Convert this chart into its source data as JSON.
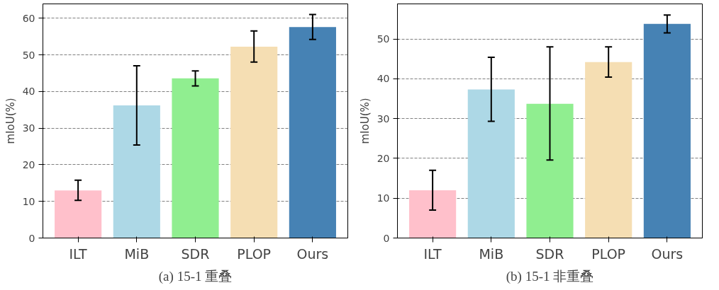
{
  "chart_data": [
    {
      "type": "bar",
      "title": "(a) 15-1 重叠",
      "ylabel": "mIoU(%)",
      "categories": [
        "ILT",
        "MiB",
        "SDR",
        "PLOP",
        "Ours"
      ],
      "values": [
        13,
        36.2,
        43.6,
        52.2,
        57.6
      ],
      "colors": [
        "#ffc0cb",
        "#add8e6",
        "#90ee90",
        "#f5deb3",
        "#4682b4"
      ],
      "errors": [
        [
          10.3,
          15.8
        ],
        [
          25.4,
          47
        ],
        [
          41.5,
          45.6
        ],
        [
          48,
          56.5
        ],
        [
          54.2,
          61
        ]
      ],
      "ylim": [
        0,
        63.9
      ],
      "yticks": [
        0,
        10,
        20,
        30,
        40,
        50,
        60
      ],
      "grid": "y"
    },
    {
      "type": "bar",
      "title": "(b) 15-1 非重叠",
      "ylabel": "mIoU(%)",
      "categories": [
        "ILT",
        "MiB",
        "SDR",
        "PLOP",
        "Ours"
      ],
      "values": [
        12,
        37.3,
        33.7,
        44.2,
        53.8
      ],
      "colors": [
        "#ffc0cb",
        "#add8e6",
        "#90ee90",
        "#f5deb3",
        "#4682b4"
      ],
      "errors": [
        [
          7,
          17
        ],
        [
          29.3,
          45.4
        ],
        [
          19.6,
          48
        ],
        [
          40.4,
          48
        ],
        [
          51.5,
          56
        ]
      ],
      "ylim": [
        0,
        58.8
      ],
      "yticks": [
        0,
        10,
        20,
        30,
        40,
        50
      ],
      "grid": "y"
    }
  ]
}
